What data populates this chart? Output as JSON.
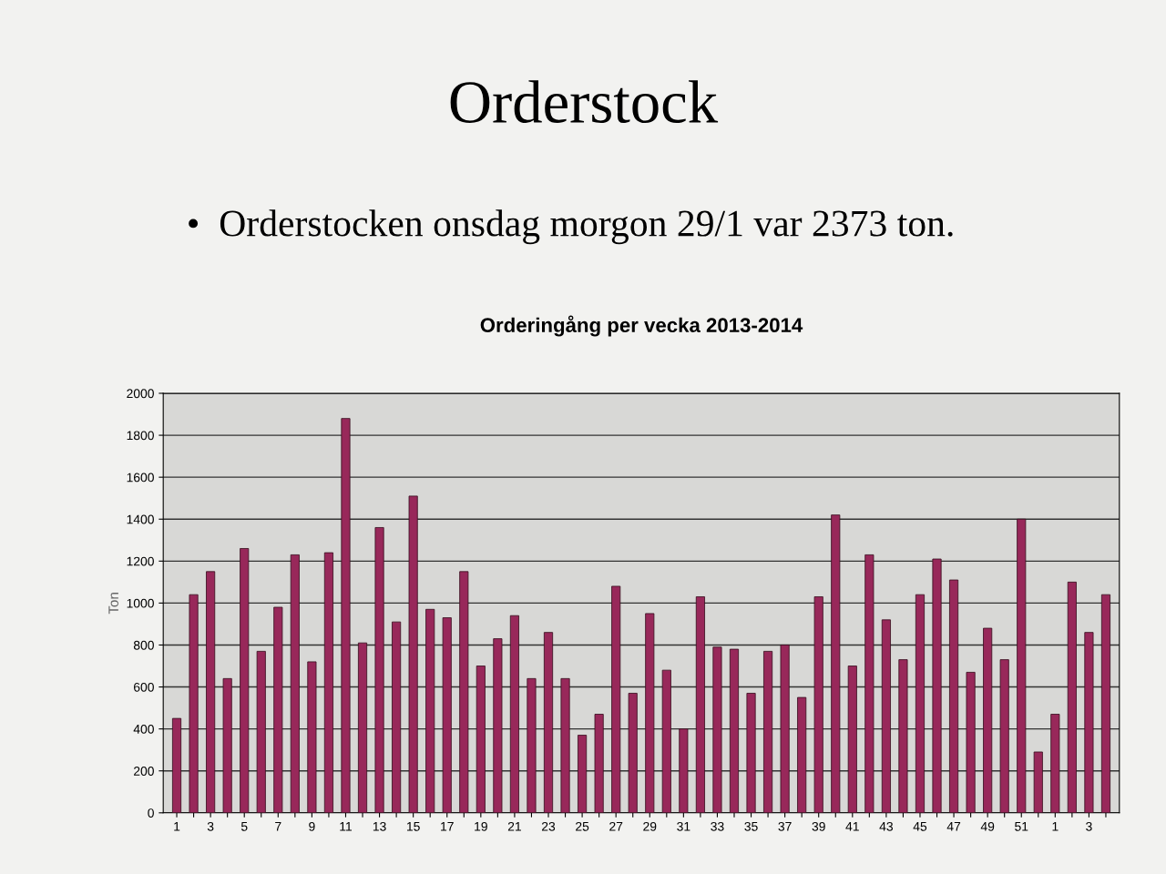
{
  "chart_data": {
    "type": "bar",
    "title": "Orderstock",
    "subtitle": "•  Orderstocken onsdag morgon 29/1 var 2373 ton.",
    "annotations": [
      "Orderingång per vecka 2013-2014"
    ],
    "ylabel": "Ton",
    "categories": [
      "1",
      null,
      "3",
      null,
      "5",
      null,
      "7",
      null,
      "9",
      null,
      "11",
      null,
      "13",
      null,
      "15",
      null,
      "17",
      null,
      "19",
      null,
      "21",
      null,
      "23",
      null,
      "25",
      null,
      "27",
      null,
      "29",
      null,
      "31",
      null,
      "33",
      null,
      "35",
      null,
      "37",
      null,
      "39",
      null,
      "41",
      null,
      "43",
      null,
      "45",
      null,
      "47",
      null,
      "49",
      null,
      "51",
      null,
      "1",
      null,
      "3",
      null
    ],
    "values": [
      450,
      1040,
      1150,
      640,
      1260,
      770,
      980,
      1230,
      720,
      1240,
      1880,
      810,
      1360,
      910,
      1510,
      970,
      930,
      1150,
      700,
      830,
      940,
      640,
      860,
      640,
      370,
      470,
      1080,
      570,
      950,
      680,
      400,
      1030,
      790,
      780,
      570,
      770,
      800,
      550,
      1030,
      1420,
      700,
      1230,
      920,
      730,
      1040,
      1210,
      1110,
      670,
      880,
      730,
      1400,
      290,
      470,
      1100,
      860,
      1040
    ],
    "color": "#98285a",
    "ylim": [
      0,
      2000
    ],
    "yticks": [
      0,
      200,
      400,
      600,
      800,
      1000,
      1200,
      1400,
      1600,
      1800,
      2000
    ],
    "grid": "y",
    "legend": false
  }
}
